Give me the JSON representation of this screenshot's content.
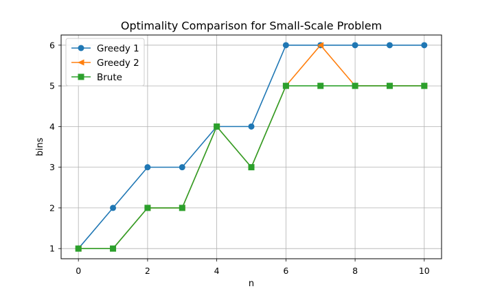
{
  "chart_data": {
    "type": "line",
    "title": "Optimality Comparison for Small-Scale Problem",
    "xlabel": "n",
    "ylabel": "bins",
    "xlim": [
      -0.5,
      10.5
    ],
    "ylim": [
      0.75,
      6.25
    ],
    "xticks": [
      0,
      2,
      4,
      6,
      8,
      10
    ],
    "yticks": [
      1,
      2,
      3,
      4,
      5,
      6
    ],
    "grid": true,
    "legend_position": "top-left",
    "x": [
      0,
      1,
      2,
      3,
      4,
      5,
      6,
      7,
      8,
      9,
      10
    ],
    "series": [
      {
        "name": "Greedy 1",
        "values": [
          1,
          2,
          3,
          3,
          4,
          4,
          6,
          6,
          6,
          6,
          6
        ],
        "color": "#1f77b4",
        "marker": "circle"
      },
      {
        "name": "Greedy 2",
        "values": [
          1,
          1,
          2,
          2,
          4,
          3,
          5,
          6,
          5,
          5,
          5
        ],
        "color": "#ff7f0e",
        "marker": "triangle-left"
      },
      {
        "name": "Brute",
        "values": [
          1,
          1,
          2,
          2,
          4,
          3,
          5,
          5,
          5,
          5,
          5
        ],
        "color": "#2ca02c",
        "marker": "square"
      }
    ]
  }
}
